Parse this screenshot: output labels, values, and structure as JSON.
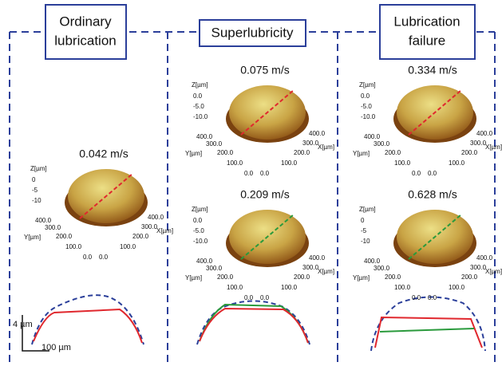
{
  "panels": [
    {
      "title": [
        "Ordinary",
        "lubrication"
      ],
      "plots": [
        {
          "speed": "0.042 m/s",
          "z_label": "Z[µm]",
          "z_ticks": [
            "0",
            "-5",
            "-10"
          ],
          "y_label": "Y[µm]",
          "y_ticks": [
            "400.0",
            "300.0",
            "200.0",
            "100.0",
            "0.0"
          ],
          "x_label": "X[µm]",
          "x_ticks": [
            "0.0",
            "100.0",
            "200.0",
            "300.0",
            "400.0"
          ]
        }
      ]
    },
    {
      "title": [
        "Superlubricity"
      ],
      "plots": [
        {
          "speed": "0.075 m/s",
          "z_label": "Z[µm]",
          "z_ticks": [
            "0.0",
            "-5.0",
            "-10.0"
          ],
          "y_label": "Y[µm]",
          "y_ticks": [
            "400.0",
            "300.0",
            "200.0",
            "100.0",
            "0.0"
          ],
          "x_label": "X[µm]",
          "x_ticks": [
            "0.0",
            "100.0",
            "200.0",
            "300.0",
            "400.0"
          ]
        },
        {
          "speed": "0.209 m/s",
          "z_label": "Z[µm]",
          "z_ticks": [
            "0.0",
            "-5.0",
            "-10.0"
          ],
          "y_label": "Y[µm]",
          "y_ticks": [
            "400.0",
            "300.0",
            "200.0",
            "100.0",
            "0.0"
          ],
          "x_label": "X[µm]",
          "x_ticks": [
            "0.0",
            "100.0",
            "200.0",
            "300.0",
            "400.0"
          ]
        }
      ]
    },
    {
      "title": [
        "Lubrication",
        "failure"
      ],
      "plots": [
        {
          "speed": "0.334 m/s",
          "z_label": "Z[µm]",
          "z_ticks": [
            "0.0",
            "-5.0",
            "-10.0"
          ],
          "y_label": "Y[µm]",
          "y_ticks": [
            "400.0",
            "300.0",
            "200.0",
            "100.0",
            "0.0"
          ],
          "x_label": "X[µm]",
          "x_ticks": [
            "0.0",
            "100.0",
            "200.0",
            "300.0",
            "400.0"
          ]
        },
        {
          "speed": "0.628 m/s",
          "z_label": "Z[µm]",
          "z_ticks": [
            "0",
            "-5",
            "-10"
          ],
          "y_label": "Y[µm]",
          "y_ticks": [
            "400.0",
            "300.0",
            "200.0",
            "100.0",
            "0.0"
          ],
          "x_label": "X[µm]",
          "x_ticks": [
            "0.0",
            "100.0",
            "200.0",
            "300.0",
            "400.0"
          ]
        }
      ]
    }
  ],
  "scale_bar": {
    "vertical": "4 µm",
    "horizontal": "100 µm"
  }
}
